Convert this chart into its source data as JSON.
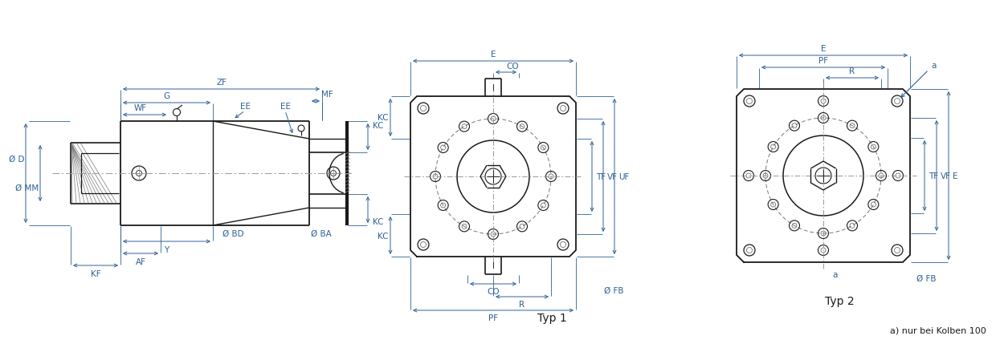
{
  "bg_color": "#ffffff",
  "line_color": "#1a1a1a",
  "dim_color": "#2d6096",
  "text_color": "#2d6096",
  "note": "a) nur bei Kolben 100",
  "typ1_label": "Typ 1",
  "typ2_label": "Typ 2"
}
